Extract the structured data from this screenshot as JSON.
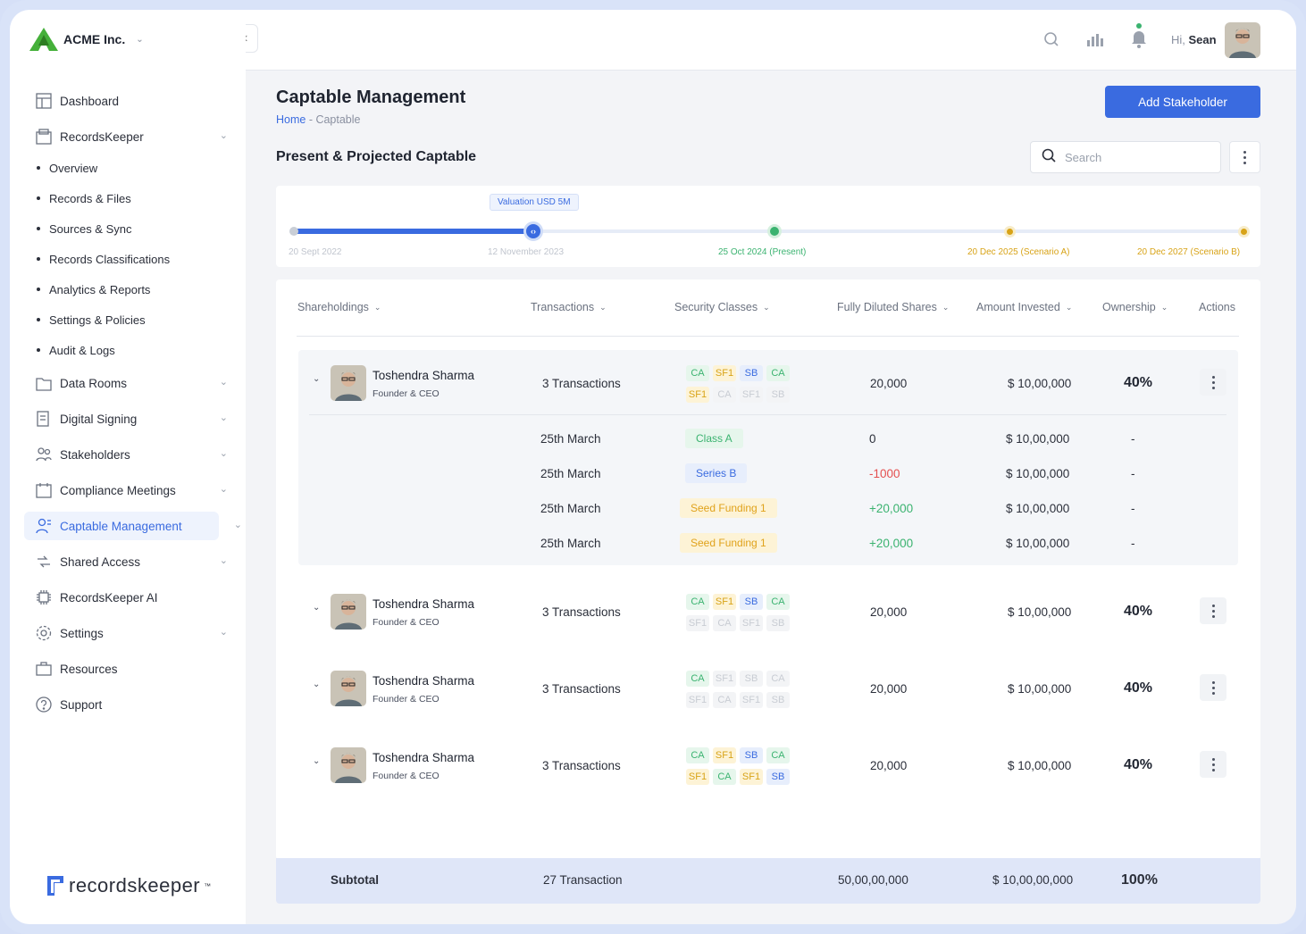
{
  "company": {
    "name": "ACME Inc."
  },
  "sidebar": {
    "items": [
      {
        "label": "Dashboard",
        "icon": "dashboard-icon"
      },
      {
        "label": "RecordsKeeper",
        "icon": "records-icon"
      },
      {
        "label": "Data Rooms",
        "icon": "data-room-icon"
      },
      {
        "label": "Digital Signing",
        "icon": "signing-icon"
      },
      {
        "label": "Stakeholders",
        "icon": "stakeholders-icon"
      },
      {
        "label": "Compliance Meetings",
        "icon": "calendar-icon"
      },
      {
        "label": "Captable Management",
        "icon": "captable-icon"
      },
      {
        "label": "Shared Access",
        "icon": "share-icon"
      },
      {
        "label": "RecordsKeeper AI",
        "icon": "ai-chip-icon"
      },
      {
        "label": "Settings",
        "icon": "gear-icon"
      },
      {
        "label": "Resources",
        "icon": "resources-icon"
      },
      {
        "label": "Support",
        "icon": "help-icon"
      }
    ],
    "subitems": [
      "Overview",
      "Records & Files",
      "Sources & Sync",
      "Records Classifications",
      "Analytics & Reports",
      "Settings & Policies",
      "Audit & Logs"
    ],
    "brand": "recordskeeper",
    "brand_tm": "™"
  },
  "topbar": {
    "greeting": "Hi,",
    "user": "Sean"
  },
  "page": {
    "title": "Captable Management",
    "breadcrumb_home": "Home",
    "breadcrumb_sep": " - ",
    "breadcrumb_current": "Captable",
    "add_button": "Add Stakeholder",
    "section_title": "Present & Projected Captable",
    "search_placeholder": "Search"
  },
  "timeline": {
    "valuation": "Valuation USD 5M",
    "points": [
      "20 Sept 2022",
      "12 November 2023",
      "25 Oct 2024 (Present)",
      "20 Dec 2025 (Scenario A)",
      "20 Dec 2027 (Scenario B)"
    ]
  },
  "table": {
    "headers": [
      "Shareholdings",
      "Transactions",
      "Security Classes",
      "Fully Diluted Shares",
      "Amount Invested",
      "Ownership",
      "Actions"
    ],
    "rows": [
      {
        "name": "Toshendra Sharma",
        "role": "Founder & CEO",
        "transactions": "3 Transactions",
        "shares": "20,000",
        "amount": "$ 10,00,000",
        "ownership": "40%",
        "badges": [
          "CA",
          "SF1",
          "SB",
          "CA",
          "SF1",
          "CA",
          "SF1",
          "SB"
        ],
        "states": [
          "ca",
          "sf",
          "sb",
          "ca",
          "sf",
          "mute",
          "mute",
          "mute"
        ]
      },
      {
        "name": "Toshendra Sharma",
        "role": "Founder & CEO",
        "transactions": "3 Transactions",
        "shares": "20,000",
        "amount": "$ 10,00,000",
        "ownership": "40%",
        "badges": [
          "CA",
          "SF1",
          "SB",
          "CA",
          "SF1",
          "CA",
          "SF1",
          "SB"
        ],
        "states": [
          "ca",
          "sf",
          "sb",
          "ca",
          "mute",
          "mute",
          "mute",
          "mute"
        ]
      },
      {
        "name": "Toshendra Sharma",
        "role": "Founder & CEO",
        "transactions": "3 Transactions",
        "shares": "20,000",
        "amount": "$ 10,00,000",
        "ownership": "40%",
        "badges": [
          "CA",
          "SF1",
          "SB",
          "CA",
          "SF1",
          "CA",
          "SF1",
          "SB"
        ],
        "states": [
          "ca",
          "mute",
          "mute",
          "mute",
          "mute",
          "mute",
          "mute",
          "mute"
        ]
      },
      {
        "name": "Toshendra Sharma",
        "role": "Founder & CEO",
        "transactions": "3 Transactions",
        "shares": "20,000",
        "amount": "$ 10,00,000",
        "ownership": "40%",
        "badges": [
          "CA",
          "SF1",
          "SB",
          "CA",
          "SF1",
          "CA",
          "SF1",
          "SB"
        ],
        "states": [
          "ca",
          "sf",
          "sb",
          "ca",
          "sf",
          "ca",
          "sf",
          "sb"
        ]
      }
    ],
    "detail": [
      {
        "date": "25th March",
        "class": "Class A",
        "kind": "ca",
        "shares": "0",
        "amount": "$ 10,00,000",
        "ownership": "-"
      },
      {
        "date": "25th March",
        "class": "Series B",
        "kind": "sb",
        "shares": "-1000",
        "amount": "$ 10,00,000",
        "ownership": "-"
      },
      {
        "date": "25th March",
        "class": "Seed Funding 1",
        "kind": "sf",
        "shares": "+20,000",
        "amount": "$ 10,00,000",
        "ownership": "-"
      },
      {
        "date": "25th March",
        "class": "Seed Funding 1",
        "kind": "sf",
        "shares": "+20,000",
        "amount": "$ 10,00,000",
        "ownership": "-"
      }
    ],
    "subtotal": {
      "label": "Subtotal",
      "transactions": "27 Transaction",
      "shares": "50,00,00,000",
      "amount": "$ 10,00,00,000",
      "ownership": "100%"
    }
  },
  "colors": {
    "accent": "#3a6be0",
    "green": "#3bb370",
    "yellow": "#d8a317",
    "red": "#e45050"
  }
}
